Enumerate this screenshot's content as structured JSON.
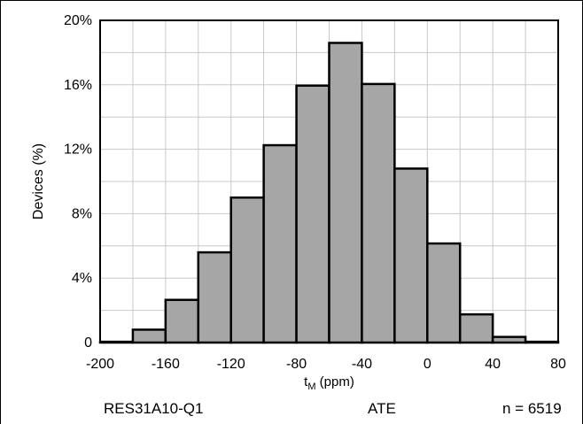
{
  "chart_data": {
    "type": "bar",
    "title": "",
    "xlabel_main": "t",
    "xlabel_sub": "M",
    "xlabel_unit": " (ppm)",
    "ylabel": "Devices (%)",
    "xlim": [
      -200,
      80
    ],
    "ylim": [
      0,
      20
    ],
    "x_ticks": [
      "-200",
      "-160",
      "-120",
      "-80",
      "-40",
      "0",
      "40",
      "80"
    ],
    "y_ticks": [
      "0",
      "4%",
      "8%",
      "12%",
      "16%",
      "20%"
    ],
    "bin_width": 20,
    "bins": [
      {
        "start": -200,
        "end": -180,
        "value": 0.05
      },
      {
        "start": -180,
        "end": -160,
        "value": 0.8
      },
      {
        "start": -160,
        "end": -140,
        "value": 2.65
      },
      {
        "start": -140,
        "end": -120,
        "value": 5.6
      },
      {
        "start": -120,
        "end": -100,
        "value": 9.0
      },
      {
        "start": -100,
        "end": -80,
        "value": 12.25
      },
      {
        "start": -80,
        "end": -60,
        "value": 15.95
      },
      {
        "start": -60,
        "end": -40,
        "value": 18.6
      },
      {
        "start": -40,
        "end": -20,
        "value": 16.05
      },
      {
        "start": -20,
        "end": 0,
        "value": 10.8
      },
      {
        "start": 0,
        "end": 20,
        "value": 6.15
      },
      {
        "start": 20,
        "end": 40,
        "value": 1.75
      },
      {
        "start": 40,
        "end": 60,
        "value": 0.35
      },
      {
        "start": 60,
        "end": 80,
        "value": 0.05
      }
    ],
    "grid": true,
    "bar_color": "#a6a6a6",
    "edge_color": "#000000"
  },
  "footer": {
    "part_number": "RES31A10-Q1",
    "method": "ATE",
    "sample_size": "n = 6519"
  }
}
